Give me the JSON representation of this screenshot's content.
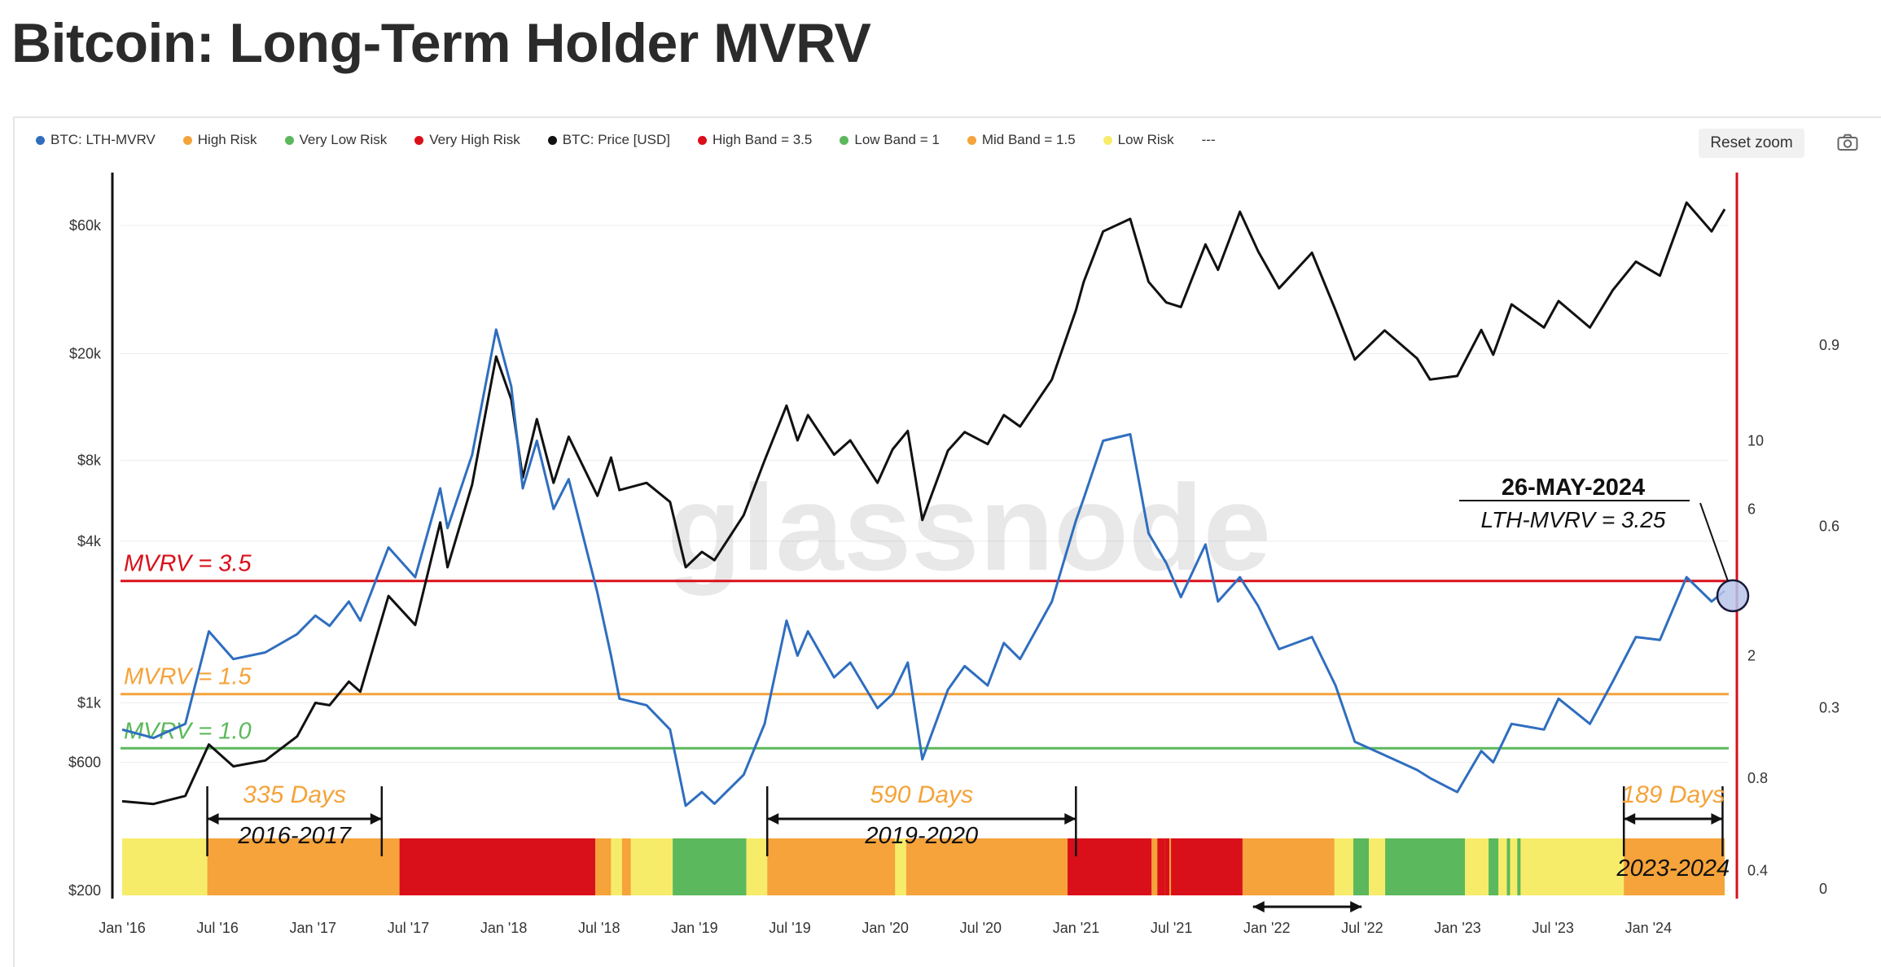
{
  "page_title": "Bitcoin: Long-Term Holder MVRV",
  "toolbar": {
    "reset_zoom_label": "Reset zoom",
    "camera_icon": "camera-icon"
  },
  "legend": [
    {
      "label": "BTC: LTH-MVRV",
      "color": "#2f6ebf"
    },
    {
      "label": "High Risk",
      "color": "#f5a33a"
    },
    {
      "label": "Very Low Risk",
      "color": "#5cb85c"
    },
    {
      "label": "Very High Risk",
      "color": "#d9101a"
    },
    {
      "label": "BTC: Price [USD]",
      "color": "#111111"
    },
    {
      "label": "High Band = 3.5",
      "color": "#d9101a"
    },
    {
      "label": "Low Band = 1",
      "color": "#5cb85c"
    },
    {
      "label": "Mid Band = 1.5",
      "color": "#f5a33a"
    },
    {
      "label": "Low Risk",
      "color": "#f7ec6a"
    },
    {
      "label": "---",
      "color": ""
    }
  ],
  "chart_data": {
    "type": "line",
    "watermark": "glassnode",
    "x_ticks": [
      "Jan '16",
      "Jul '16",
      "Jan '17",
      "Jul '17",
      "Jan '18",
      "Jul '18",
      "Jan '19",
      "Jul '19",
      "Jan '20",
      "Jul '20",
      "Jan '21",
      "Jul '21",
      "Jan '22",
      "Jul '22",
      "Jan '23",
      "Jul '23",
      "Jan '24"
    ],
    "x_range": [
      "2016-01-01",
      "2024-05-26"
    ],
    "price_axis": {
      "ticks": [
        "$200",
        "$600",
        "$1k",
        "$4k",
        "$8k",
        "$20k",
        "$60k"
      ],
      "scale": "log"
    },
    "mvrv_axis": {
      "ticks": [
        "0.4",
        "0.8",
        "2",
        "6",
        "10"
      ],
      "scale": "log"
    },
    "right_axis": {
      "ticks": [
        "0",
        "0.3",
        "0.6",
        "0.9"
      ]
    },
    "series": [
      {
        "name": "BTC: Price [USD]",
        "color": "#111111",
        "points": [
          [
            "2016-01-01",
            430
          ],
          [
            "2016-03-01",
            420
          ],
          [
            "2016-05-01",
            450
          ],
          [
            "2016-06-15",
            700
          ],
          [
            "2016-08-01",
            580
          ],
          [
            "2016-10-01",
            610
          ],
          [
            "2016-12-01",
            750
          ],
          [
            "2017-01-05",
            1000
          ],
          [
            "2017-02-01",
            980
          ],
          [
            "2017-03-10",
            1200
          ],
          [
            "2017-04-01",
            1100
          ],
          [
            "2017-05-25",
            2500
          ],
          [
            "2017-07-15",
            1950
          ],
          [
            "2017-09-01",
            4700
          ],
          [
            "2017-09-15",
            3200
          ],
          [
            "2017-11-01",
            6500
          ],
          [
            "2017-12-17",
            19500
          ],
          [
            "2018-01-15",
            13500
          ],
          [
            "2018-02-06",
            6900
          ],
          [
            "2018-03-05",
            11400
          ],
          [
            "2018-04-06",
            6600
          ],
          [
            "2018-05-05",
            9800
          ],
          [
            "2018-06-29",
            5900
          ],
          [
            "2018-07-25",
            8200
          ],
          [
            "2018-08-10",
            6200
          ],
          [
            "2018-10-01",
            6600
          ],
          [
            "2018-11-15",
            5600
          ],
          [
            "2018-12-15",
            3200
          ],
          [
            "2019-01-15",
            3650
          ],
          [
            "2019-02-08",
            3400
          ],
          [
            "2019-04-05",
            5000
          ],
          [
            "2019-05-15",
            8000
          ],
          [
            "2019-06-26",
            12800
          ],
          [
            "2019-07-17",
            9500
          ],
          [
            "2019-08-06",
            11800
          ],
          [
            "2019-09-25",
            8400
          ],
          [
            "2019-10-26",
            9500
          ],
          [
            "2019-12-17",
            6600
          ],
          [
            "2020-01-15",
            8800
          ],
          [
            "2020-02-13",
            10300
          ],
          [
            "2020-03-12",
            4800
          ],
          [
            "2020-04-30",
            8700
          ],
          [
            "2020-06-01",
            10200
          ],
          [
            "2020-07-15",
            9200
          ],
          [
            "2020-08-15",
            11800
          ],
          [
            "2020-09-15",
            10700
          ],
          [
            "2020-11-15",
            16000
          ],
          [
            "2020-12-31",
            29000
          ],
          [
            "2021-01-15",
            37000
          ],
          [
            "2021-02-21",
            57000
          ],
          [
            "2021-04-14",
            63500
          ],
          [
            "2021-05-19",
            37000
          ],
          [
            "2021-06-22",
            31000
          ],
          [
            "2021-07-20",
            29800
          ],
          [
            "2021-09-05",
            51000
          ],
          [
            "2021-09-29",
            41000
          ],
          [
            "2021-11-10",
            67500
          ],
          [
            "2021-12-15",
            48000
          ],
          [
            "2022-01-24",
            35000
          ],
          [
            "2022-03-28",
            47500
          ],
          [
            "2022-05-12",
            29000
          ],
          [
            "2022-06-18",
            19000
          ],
          [
            "2022-08-14",
            24400
          ],
          [
            "2022-10-15",
            19200
          ],
          [
            "2022-11-09",
            16000
          ],
          [
            "2022-12-31",
            16500
          ],
          [
            "2023-02-15",
            24500
          ],
          [
            "2023-03-10",
            19800
          ],
          [
            "2023-04-14",
            30500
          ],
          [
            "2023-06-15",
            25000
          ],
          [
            "2023-07-13",
            31400
          ],
          [
            "2023-09-11",
            25000
          ],
          [
            "2023-10-25",
            34500
          ],
          [
            "2023-12-08",
            44000
          ],
          [
            "2024-01-23",
            39000
          ],
          [
            "2024-03-14",
            73000
          ],
          [
            "2024-05-01",
            57000
          ],
          [
            "2024-05-26",
            69000
          ]
        ]
      },
      {
        "name": "BTC: LTH-MVRV",
        "color": "#2f6ebf",
        "points": [
          [
            "2016-01-01",
            1.15
          ],
          [
            "2016-03-01",
            1.08
          ],
          [
            "2016-05-01",
            1.2
          ],
          [
            "2016-06-15",
            2.4
          ],
          [
            "2016-08-01",
            1.95
          ],
          [
            "2016-10-01",
            2.05
          ],
          [
            "2016-12-01",
            2.35
          ],
          [
            "2017-01-05",
            2.7
          ],
          [
            "2017-02-01",
            2.5
          ],
          [
            "2017-03-10",
            3.0
          ],
          [
            "2017-04-01",
            2.6
          ],
          [
            "2017-05-25",
            4.5
          ],
          [
            "2017-07-15",
            3.6
          ],
          [
            "2017-09-01",
            7.0
          ],
          [
            "2017-09-15",
            5.2
          ],
          [
            "2017-11-01",
            9.0
          ],
          [
            "2017-12-17",
            23.0
          ],
          [
            "2018-01-15",
            15.0
          ],
          [
            "2018-02-06",
            7.0
          ],
          [
            "2018-03-05",
            10.0
          ],
          [
            "2018-04-06",
            6.0
          ],
          [
            "2018-05-05",
            7.5
          ],
          [
            "2018-06-29",
            3.2
          ],
          [
            "2018-07-25",
            2.0
          ],
          [
            "2018-08-10",
            1.45
          ],
          [
            "2018-10-01",
            1.38
          ],
          [
            "2018-11-15",
            1.15
          ],
          [
            "2018-12-15",
            0.65
          ],
          [
            "2019-01-15",
            0.72
          ],
          [
            "2019-02-08",
            0.66
          ],
          [
            "2019-04-05",
            0.82
          ],
          [
            "2019-05-15",
            1.2
          ],
          [
            "2019-06-26",
            2.6
          ],
          [
            "2019-07-17",
            2.0
          ],
          [
            "2019-08-06",
            2.4
          ],
          [
            "2019-09-25",
            1.7
          ],
          [
            "2019-10-26",
            1.9
          ],
          [
            "2019-12-17",
            1.35
          ],
          [
            "2020-01-15",
            1.5
          ],
          [
            "2020-02-13",
            1.9
          ],
          [
            "2020-03-12",
            0.92
          ],
          [
            "2020-04-30",
            1.55
          ],
          [
            "2020-06-01",
            1.85
          ],
          [
            "2020-07-15",
            1.6
          ],
          [
            "2020-08-15",
            2.2
          ],
          [
            "2020-09-15",
            1.95
          ],
          [
            "2020-11-15",
            3.0
          ],
          [
            "2020-12-31",
            5.5
          ],
          [
            "2021-01-15",
            6.5
          ],
          [
            "2021-02-21",
            10.0
          ],
          [
            "2021-04-14",
            10.5
          ],
          [
            "2021-05-19",
            5.0
          ],
          [
            "2021-06-22",
            4.0
          ],
          [
            "2021-07-20",
            3.1
          ],
          [
            "2021-09-05",
            4.6
          ],
          [
            "2021-09-29",
            3.0
          ],
          [
            "2021-11-10",
            3.6
          ],
          [
            "2021-12-15",
            2.9
          ],
          [
            "2022-01-24",
            2.1
          ],
          [
            "2022-03-28",
            2.3
          ],
          [
            "2022-05-12",
            1.6
          ],
          [
            "2022-06-18",
            1.05
          ],
          [
            "2022-08-14",
            0.95
          ],
          [
            "2022-10-15",
            0.85
          ],
          [
            "2022-11-09",
            0.8
          ],
          [
            "2022-12-31",
            0.72
          ],
          [
            "2023-02-15",
            0.98
          ],
          [
            "2023-03-10",
            0.9
          ],
          [
            "2023-04-14",
            1.2
          ],
          [
            "2023-06-15",
            1.15
          ],
          [
            "2023-07-13",
            1.45
          ],
          [
            "2023-09-11",
            1.2
          ],
          [
            "2023-10-25",
            1.65
          ],
          [
            "2023-12-08",
            2.3
          ],
          [
            "2024-01-23",
            2.25
          ],
          [
            "2024-03-14",
            3.6
          ],
          [
            "2024-05-01",
            3.0
          ],
          [
            "2024-05-26",
            3.25
          ]
        ]
      }
    ],
    "bands": [
      {
        "name": "High Band = 3.5",
        "value": 3.5,
        "color": "#d9101a",
        "label": "MVRV = 3.5"
      },
      {
        "name": "Mid Band = 1.5",
        "value": 1.5,
        "color": "#f5a33a",
        "label": "MVRV = 1.5"
      },
      {
        "name": "Low Band = 1",
        "value": 1.0,
        "color": "#5cb85c",
        "label": "MVRV = 1.0"
      }
    ],
    "risk_strip": [
      [
        "2016-01-01",
        "2016-06-12",
        "Low Risk"
      ],
      [
        "2016-06-12",
        "2017-06-15",
        "High Risk"
      ],
      [
        "2017-06-15",
        "2018-06-25",
        "Very High Risk"
      ],
      [
        "2018-06-25",
        "2018-07-25",
        "High Risk"
      ],
      [
        "2018-07-25",
        "2018-08-15",
        "Low Risk"
      ],
      [
        "2018-08-15",
        "2018-09-01",
        "High Risk"
      ],
      [
        "2018-09-01",
        "2018-11-20",
        "Low Risk"
      ],
      [
        "2018-11-20",
        "2019-04-10",
        "Very Low Risk"
      ],
      [
        "2019-04-10",
        "2019-05-20",
        "Low Risk"
      ],
      [
        "2019-05-20",
        "2020-01-20",
        "High Risk"
      ],
      [
        "2020-01-20",
        "2020-02-10",
        "Low Risk"
      ],
      [
        "2020-02-10",
        "2020-12-15",
        "High Risk"
      ],
      [
        "2020-12-15",
        "2021-05-25",
        "Very High Risk"
      ],
      [
        "2021-05-25",
        "2021-07-01",
        "High Risk"
      ],
      [
        "2021-07-01",
        "2021-11-15",
        "Very High Risk"
      ],
      [
        "2021-11-15",
        "2022-05-10",
        "High Risk"
      ],
      [
        "2022-05-10",
        "2022-06-15",
        "Low Risk"
      ],
      [
        "2022-06-15",
        "2022-07-15",
        "Very Low Risk"
      ],
      [
        "2022-07-15",
        "2022-08-15",
        "Low Risk"
      ],
      [
        "2022-08-15",
        "2023-01-15",
        "Very Low Risk"
      ],
      [
        "2023-01-15",
        "2023-03-01",
        "Low Risk"
      ],
      [
        "2023-03-01",
        "2023-03-20",
        "Very Low Risk"
      ],
      [
        "2023-03-20",
        "2023-11-15",
        "Low Risk"
      ],
      [
        "2023-11-15",
        "2024-05-26",
        "High Risk"
      ]
    ],
    "risk_colors": {
      "Low Risk": "#f7ec6a",
      "High Risk": "#f5a33a",
      "Very High Risk": "#d9101a",
      "Very Low Risk": "#5cb85c"
    },
    "annotations": {
      "callout_date": "26-MAY-2024",
      "callout_value": "LTH-MVRV = 3.25",
      "periods": [
        {
          "days": "335 Days",
          "years": "2016-2017",
          "start": "2016-06-12",
          "end": "2017-05-12"
        },
        {
          "days": "590 Days",
          "years": "2019-2020",
          "start": "2019-05-20",
          "end": "2020-12-31"
        },
        {
          "days": "189 Days",
          "years": "2023-2024",
          "start": "2023-11-15",
          "end": "2024-05-22"
        }
      ],
      "extra_arrow": {
        "start": "2021-12-05",
        "end": "2022-07-01"
      }
    }
  }
}
